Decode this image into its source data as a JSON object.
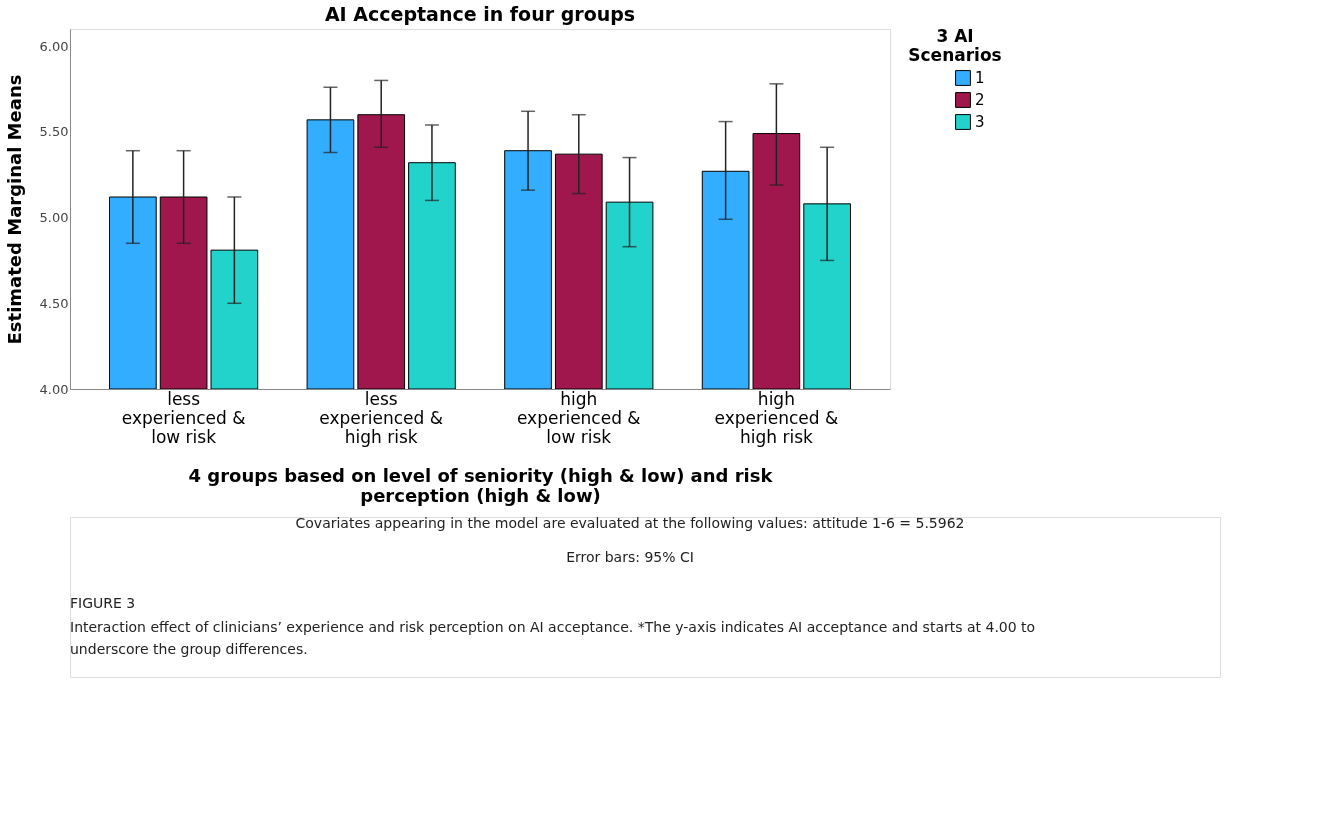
{
  "chart_data": {
    "type": "bar",
    "title": "AI Acceptance in four groups",
    "categories": [
      "less experienced & low risk",
      "less experienced & high risk",
      "high experienced & low risk",
      "high experienced & high risk"
    ],
    "xlabel": "4 groups based on level of seniority (high & low) and risk perception (high & low)",
    "ylabel": "Estimated Marginal Means",
    "legend_title": "3 AI Scenarios",
    "series": [
      {
        "name": "1",
        "color": "#33adff",
        "values": [
          5.12,
          5.57,
          5.39,
          5.27
        ],
        "errors": [
          [
            4.85,
            5.39
          ],
          [
            5.38,
            5.76
          ],
          [
            5.16,
            5.62
          ],
          [
            4.99,
            5.56
          ]
        ]
      },
      {
        "name": "2",
        "color": "#a0174e",
        "values": [
          5.12,
          5.6,
          5.37,
          5.49
        ],
        "errors": [
          [
            4.85,
            5.39
          ],
          [
            5.41,
            5.8
          ],
          [
            5.14,
            5.6
          ],
          [
            5.19,
            5.78
          ]
        ]
      },
      {
        "name": "3",
        "color": "#22d3cc",
        "values": [
          4.81,
          5.32,
          5.09,
          5.08
        ],
        "errors": [
          [
            4.5,
            5.12
          ],
          [
            5.1,
            5.54
          ],
          [
            4.83,
            5.35
          ],
          [
            4.75,
            5.41
          ]
        ]
      }
    ],
    "ylim": [
      4,
      6.1
    ],
    "yticks": [
      {
        "value": 4,
        "label": "4.00"
      },
      {
        "value": 4.5,
        "label": "4.50"
      },
      {
        "value": 5,
        "label": "5.00"
      },
      {
        "value": 5.5,
        "label": "5.50"
      },
      {
        "value": 6,
        "label": "6.00"
      }
    ],
    "grid": false,
    "legend": "top right",
    "annotations": [
      "Covariates appearing in the model are evaluated at the following values: attitude 1-6 = 5.5962",
      "Error bars: 95% CI",
      "FIGURE 3",
      "Interaction effect of clinicians’ experience and risk perception on AI acceptance. *The y-axis indicates AI acceptance and starts at 4.00 to underscore the group differences."
    ]
  }
}
